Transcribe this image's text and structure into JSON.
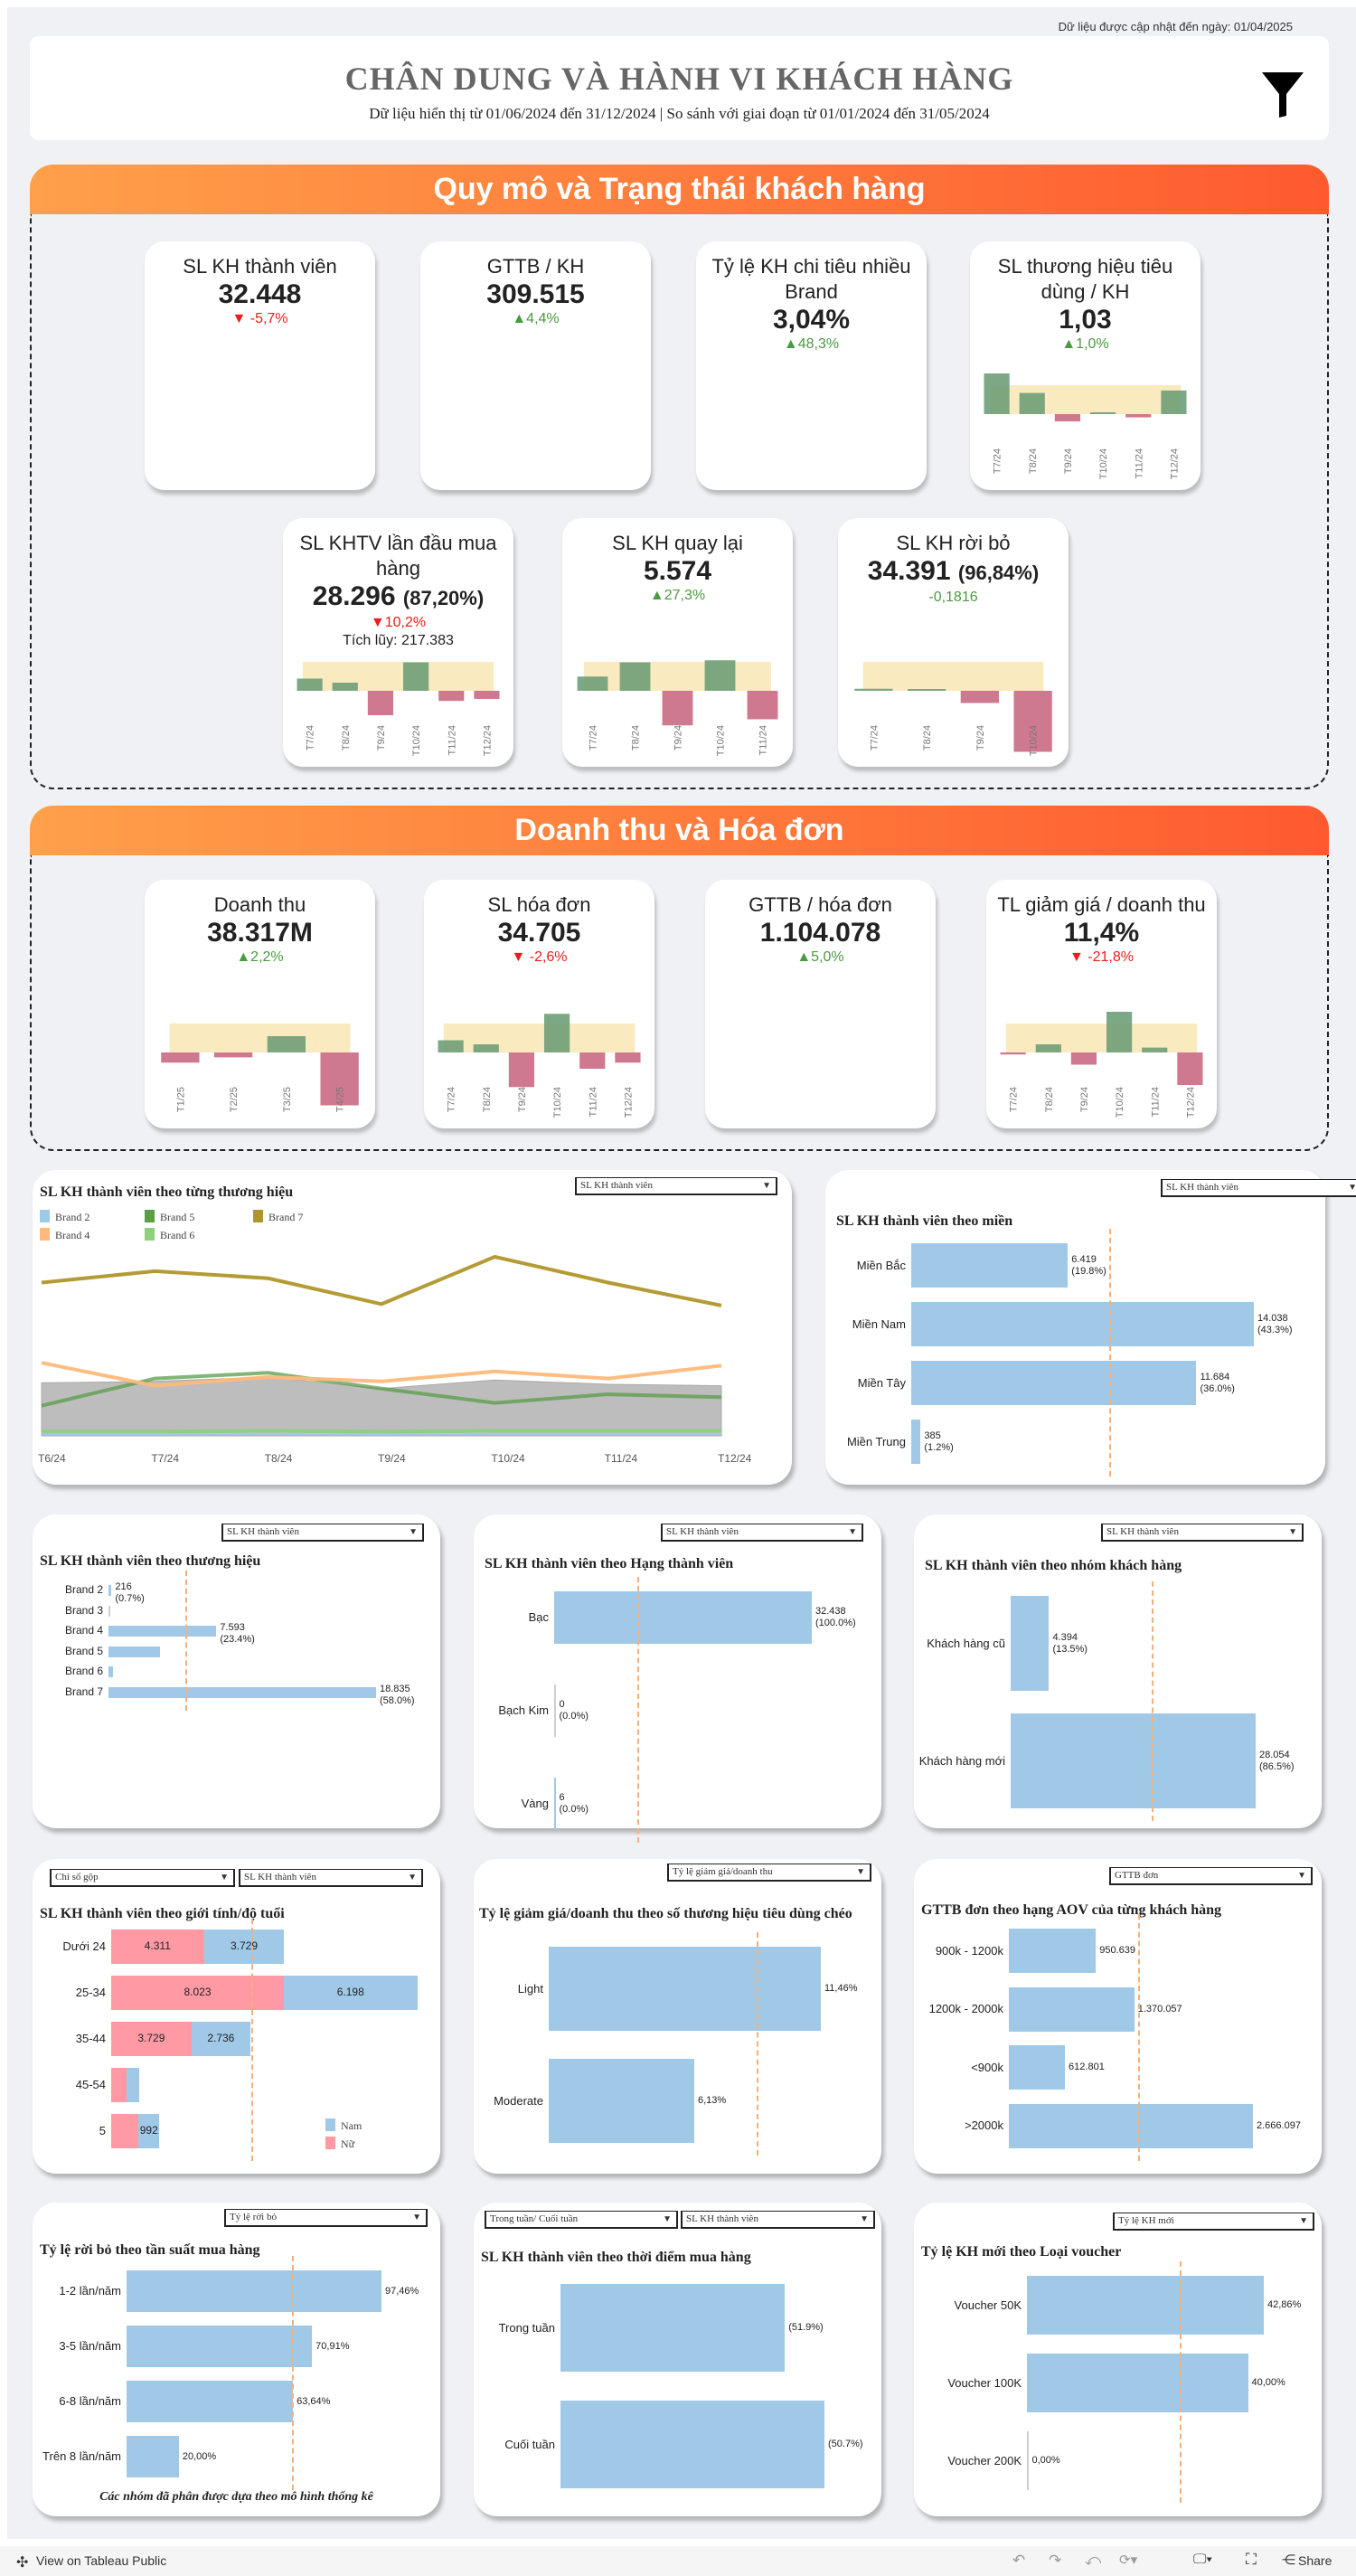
{
  "updated_text": "Dữ liệu được cập nhật đến ngày: 01/04/2025",
  "header": {
    "title": "CHÂN DUNG VÀ HÀNH VI KHÁCH HÀNG",
    "subtitle": "Dữ liệu hiển thị từ 01/06/2024 đến 31/12/2024 | So sánh với giai đoạn từ 01/01/2024 đến 31/05/2024",
    "filter_icon": "funnel-icon"
  },
  "colors": {
    "up": "#4a9a3f",
    "down": "#ee1c1c",
    "bar": "#a0c9e8",
    "positive_bar": "#6f9e78",
    "negative_bar": "#c96a83",
    "band": "#f8e6b4",
    "banner_start": "#ffa04a",
    "banner_end": "#ff5a2f"
  },
  "sections": [
    {
      "title": "Quy mô và Trạng thái khách hàng",
      "kpis": [
        {
          "title": "SL KH thành viên",
          "value": "32.448",
          "delta": "▼ -5,7%",
          "dir": "down"
        },
        {
          "title": "GTTB / KH",
          "value": "309.515",
          "delta": "▲4,4%",
          "dir": "up"
        },
        {
          "title": "Tỷ lệ KH chi tiêu nhiều Brand",
          "value": "3,04%",
          "delta": "▲48,3%",
          "dir": "up"
        },
        {
          "title": "SL thương hiệu tiêu dùng / KH",
          "value": "1,03",
          "delta": "▲1,0%",
          "dir": "up",
          "chart": {
            "labels": [
              "T7/24",
              "T8/24",
              "T9/24",
              "T10/24",
              "T11/24",
              "T12/24"
            ],
            "values": [
              1.0,
              0.52,
              -0.18,
              0.02,
              -0.08,
              0.58
            ]
          }
        },
        {
          "title": "SL KHTV lần đầu mua hàng",
          "value": "28.296",
          "value_suffix": "(87,20%)",
          "delta": "▼10,2%",
          "dir": "down",
          "extra": "Tích lũy: 217.383",
          "chart": {
            "labels": [
              "T7/24",
              "T8/24",
              "T9/24",
              "T10/24",
              "T11/24",
              "T12/24"
            ],
            "values": [
              0.3,
              0.2,
              -0.6,
              0.7,
              -0.25,
              -0.2
            ]
          }
        },
        {
          "title": "SL KH quay lại",
          "value": "5.574",
          "delta": "▲27,3%",
          "dir": "up",
          "chart": {
            "labels": [
              "T7/24",
              "T8/24",
              "T9/24",
              "T10/24",
              "T11/24"
            ],
            "values": [
              0.35,
              0.7,
              -0.85,
              0.75,
              -0.7
            ]
          }
        },
        {
          "title": "SL KH rời bỏ",
          "value": "34.391",
          "value_suffix": "(96,84%)",
          "delta": "-0,1816",
          "dir": "up",
          "chart": {
            "labels": [
              "T7/24",
              "T8/24",
              "T9/24",
              "T10/24"
            ],
            "values": [
              0.05,
              0.03,
              -0.3,
              -1.5
            ]
          }
        }
      ]
    },
    {
      "title": "Doanh thu và Hóa đơn",
      "kpis": [
        {
          "title": "Doanh thu",
          "value": "38.317M",
          "delta": "▲2,2%",
          "dir": "up",
          "chart": {
            "labels": [
              "T1/25",
              "T2/25",
              "T3/25",
              "T4/25"
            ],
            "values": [
              -0.25,
              -0.12,
              0.4,
              -1.3
            ]
          }
        },
        {
          "title": "SL hóa đơn",
          "value": "34.705",
          "delta": "▼ -2,6%",
          "dir": "down",
          "chart": {
            "labels": [
              "T7/24",
              "T8/24",
              "T9/24",
              "T10/24",
              "T11/24",
              "T12/24"
            ],
            "values": [
              0.3,
              0.2,
              -0.85,
              0.95,
              -0.4,
              -0.25
            ]
          }
        },
        {
          "title": "GTTB / hóa đơn",
          "value": "1.104.078",
          "delta": "▲5,0%",
          "dir": "up"
        },
        {
          "title": "TL giảm giá / doanh thu",
          "value": "11,4%",
          "delta": "▼ -21,8%",
          "dir": "down",
          "chart": {
            "labels": [
              "T7/24",
              "T8/24",
              "T9/24",
              "T10/24",
              "T11/24",
              "T12/24"
            ],
            "values": [
              -0.05,
              0.2,
              -0.3,
              1.0,
              0.12,
              -0.8
            ]
          }
        }
      ]
    }
  ],
  "chart_data": [
    {
      "id": "brand-line",
      "type": "line",
      "title": "SL KH thành viên theo từng thương hiệu",
      "dropdown": "SL KH thành viên",
      "categories": [
        "T6/24",
        "T7/24",
        "T8/24",
        "T9/24",
        "T10/24",
        "T11/24",
        "T12/24"
      ],
      "ylim": [
        0,
        12.5
      ],
      "grid": false,
      "legend": "top-left",
      "series": [
        {
          "name": "Brand 2",
          "color": "#a0c9e8",
          "values": [
            0.15,
            0.15,
            0.2,
            0.15,
            0.2,
            0.2,
            0.2
          ]
        },
        {
          "name": "Brand 5",
          "color": "#5a9e48",
          "values": [
            2.1,
            4.0,
            4.4,
            3.3,
            2.3,
            2.9,
            2.7
          ]
        },
        {
          "name": "Brand 7",
          "color": "#b0962a",
          "values": [
            10.7,
            11.5,
            11.0,
            9.2,
            12.5,
            10.7,
            9.1
          ]
        },
        {
          "name": "Brand 4",
          "color": "#ffb97a",
          "values": [
            5.1,
            3.5,
            4.1,
            3.8,
            4.5,
            4.0,
            4.9
          ]
        },
        {
          "name": "Brand 6",
          "color": "#8fd07e",
          "values": [
            0.3,
            0.3,
            0.35,
            0.3,
            0.35,
            0.35,
            0.35
          ]
        }
      ],
      "area": {
        "color": "#bdbdbd",
        "values": [
          3.7,
          3.8,
          4.1,
          3.3,
          3.9,
          3.6,
          3.5
        ]
      }
    },
    {
      "id": "region",
      "type": "bar",
      "title": "SL KH thành viên theo miền",
      "dropdown": "SL KH thành viên",
      "categories": [
        "Miền Bắc",
        "Miền Nam",
        "Miền Tây",
        "Miền Trung"
      ],
      "values": [
        6419,
        14038,
        11684,
        385
      ],
      "labels": [
        "6.419",
        "14.038",
        "11.684",
        "385"
      ],
      "sublabels": [
        "(19.8%)",
        "(43.3%)",
        "(36.0%)",
        "(1.2%)"
      ],
      "reference_line": "average"
    },
    {
      "id": "brand",
      "type": "bar",
      "title": "SL KH thành viên theo thương hiệu",
      "dropdown": "SL KH thành viên",
      "categories": [
        "Brand 2",
        "Brand 3",
        "Brand 4",
        "Brand 5",
        "Brand 6",
        "Brand 7"
      ],
      "values": [
        216,
        0,
        7593,
        3600,
        320,
        18835
      ],
      "labels": [
        "216",
        "",
        "7.593",
        "",
        "",
        "18.835"
      ],
      "sublabels": [
        "(0.7%)",
        "",
        "(23.4%)",
        "",
        "",
        "(58.0%)"
      ],
      "reference_line": "average"
    },
    {
      "id": "rank",
      "type": "bar",
      "title": "SL KH thành viên theo Hạng thành viên",
      "dropdown": "SL KH thành viên",
      "categories": [
        "Bạc",
        "Bạch Kim",
        "Vàng"
      ],
      "values": [
        32438,
        0,
        6
      ],
      "labels": [
        "32.438",
        "0",
        "6"
      ],
      "sublabels": [
        "(100.0%)",
        "(0.0%)",
        "(0.0%)"
      ],
      "reference_line": "average"
    },
    {
      "id": "group",
      "type": "bar",
      "title": "SL KH thành viên theo nhóm khách hàng",
      "dropdown": "SL KH thành viên",
      "categories": [
        "Khách hàng cũ",
        "Khách hàng mới"
      ],
      "values": [
        4394,
        28054
      ],
      "labels": [
        "4.394",
        "28.054"
      ],
      "sublabels": [
        "(13.5%)",
        "(86.5%)"
      ],
      "reference_line": "average"
    },
    {
      "id": "gender",
      "type": "stacked-bar",
      "title": "SL KH thành viên theo giới tính/độ tuổi",
      "dropdowns": [
        "Chỉ số gộp",
        "SL KH thành viên"
      ],
      "categories": [
        "Dưới 24",
        "25-34",
        "35-44",
        "45-54",
        "5"
      ],
      "series": [
        {
          "name": "Nữ",
          "color": "#ff9aa5",
          "values": [
            4311,
            8023,
            3729,
            720,
            1250
          ],
          "labels": [
            "4.311",
            "8.023",
            "3.729",
            "",
            ""
          ]
        },
        {
          "name": "Nam",
          "color": "#a0c9e8",
          "values": [
            3729,
            6198,
            2736,
            600,
            992
          ],
          "labels": [
            "3.729",
            "6.198",
            "2.736",
            "",
            "992"
          ]
        }
      ],
      "legend_order": [
        "Nam",
        "Nữ"
      ],
      "reference_line": "average"
    },
    {
      "id": "discount",
      "type": "bar",
      "title": "Tỷ lệ giảm giá/doanh thu theo số thương hiệu tiêu dùng chéo",
      "dropdown": "Tỷ lệ giảm giá/doanh thu",
      "categories": [
        "Light",
        "Moderate"
      ],
      "values": [
        11.46,
        6.13
      ],
      "labels": [
        "11,46%",
        "6,13%"
      ],
      "reference_line": "average"
    },
    {
      "id": "aov",
      "type": "bar",
      "title": "GTTB đơn theo hạng AOV của từng khách hàng",
      "dropdown": "GTTB đơn",
      "categories": [
        "900k - 1200k",
        "1200k - 2000k",
        "<900k",
        ">2000k"
      ],
      "values": [
        950639,
        1370057,
        612801,
        2666097
      ],
      "labels": [
        "950.639",
        "1.370.057",
        "612.801",
        "2.666.097"
      ],
      "reference_line": "average"
    },
    {
      "id": "churn",
      "type": "bar",
      "title": "Tỷ lệ rời bỏ theo tần suất mua hàng",
      "dropdown": "Tỷ lệ rời bỏ",
      "categories": [
        "1-2 lần/năm",
        "3-5 lần/năm",
        "6-8 lần/năm",
        "Trên 8 lần/năm"
      ],
      "values": [
        97.46,
        70.91,
        63.64,
        20.0
      ],
      "labels": [
        "97,46%",
        "70,91%",
        "63,64%",
        "20,00%"
      ],
      "reference_line": "average",
      "footnote": "Các nhóm đã phân được dựa theo mô hình thống kê"
    },
    {
      "id": "weekday",
      "type": "bar",
      "title": "SL KH thành viên theo thời điểm mua hàng",
      "dropdowns": [
        "Trong tuần/ Cuối tuần",
        "SL KH thành viên"
      ],
      "categories": [
        "Trong tuần",
        "Cuối tuần"
      ],
      "values": [
        0.85,
        1.0
      ],
      "labels": [
        "(51.9%)",
        "(50.7%)"
      ]
    },
    {
      "id": "voucher",
      "type": "bar",
      "title": "Tỷ lệ KH mới theo Loại voucher",
      "dropdown": "Tỷ lệ KH mới",
      "categories": [
        "Voucher 50K",
        "Voucher 100K",
        "Voucher 200K"
      ],
      "values": [
        42.86,
        40.0,
        0.0
      ],
      "labels": [
        "42,86%",
        "40,00%",
        "0,00%"
      ],
      "reference_line": "average"
    }
  ],
  "footer": {
    "view_label": "View on Tableau Public",
    "share_label": "Share",
    "icons": [
      "tableau-logo-icon",
      "undo-icon",
      "redo-icon",
      "revert-icon",
      "refresh-icon",
      "device-layout-icon",
      "fullscreen-icon",
      "share-icon"
    ]
  }
}
